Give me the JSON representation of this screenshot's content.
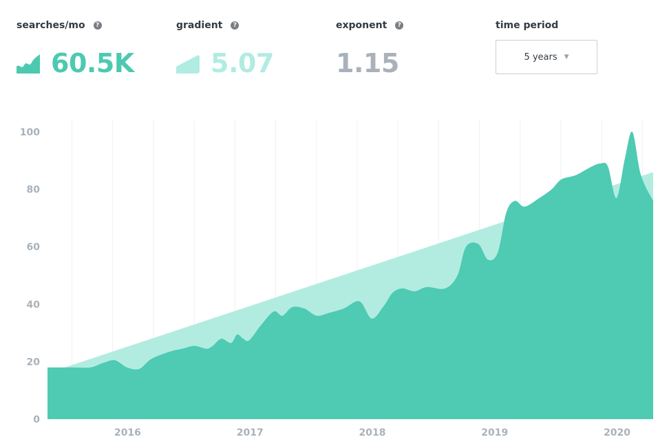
{
  "metrics": {
    "searches": {
      "label": "searches/mo",
      "value": "60.5K",
      "color": "#4dc9b0",
      "icon": "area-chart-icon"
    },
    "gradient": {
      "label": "gradient",
      "value": "5.07",
      "color": "#b0ece2",
      "icon": "trend-wedge-icon"
    },
    "exponent": {
      "label": "exponent",
      "value": "1.15",
      "color": "#a9b2ba"
    }
  },
  "time_period": {
    "label": "time period",
    "selected": "5 years"
  },
  "help_glyph": "?",
  "caret_glyph": "▼",
  "colors": {
    "area": "#4fcab3",
    "trend": "#b2ece1",
    "grid": "#eef0f2",
    "tick": "#a9b2ba"
  },
  "chart_data": {
    "type": "area",
    "xlabel": "",
    "ylabel": "",
    "ylim": [
      0,
      100
    ],
    "xlim": [
      2015.3,
      2020.25
    ],
    "y_ticks": [
      0,
      20,
      40,
      60,
      80,
      100
    ],
    "x_ticks": [
      "2016",
      "2017",
      "2018",
      "2019",
      "2020"
    ],
    "x_tick_values": [
      2016,
      2017,
      2018,
      2019,
      2020
    ],
    "grid": true,
    "legend": "none",
    "trend": {
      "x": [
        2015.3,
        2020.25
      ],
      "y": [
        16,
        86
      ]
    },
    "series": [
      {
        "x": [
          2015.3,
          2015.5,
          2015.65,
          2015.75,
          2015.85,
          2015.95,
          2016.05,
          2016.15,
          2016.3,
          2016.4,
          2016.5,
          2016.6,
          2016.65,
          2016.72,
          2016.8,
          2016.85,
          2016.9,
          2016.95,
          2017.05,
          2017.15,
          2017.22,
          2017.3,
          2017.4,
          2017.5,
          2017.6,
          2017.72,
          2017.85,
          2017.95,
          2018.05,
          2018.12,
          2018.2,
          2018.3,
          2018.4,
          2018.55,
          2018.65,
          2018.72,
          2018.82,
          2018.9,
          2018.98,
          2019.05,
          2019.12,
          2019.2,
          2019.32,
          2019.42,
          2019.5,
          2019.62,
          2019.75,
          2019.82,
          2019.88,
          2019.95,
          2020.02,
          2020.08,
          2020.15,
          2020.25
        ],
        "y": [
          18,
          18,
          18,
          19.5,
          20.5,
          18,
          17.5,
          21,
          23.5,
          24.5,
          25.5,
          24.5,
          25.5,
          28,
          26.5,
          29.5,
          28,
          27.5,
          33,
          37.5,
          36,
          39,
          38.5,
          36,
          37,
          38.5,
          41,
          35,
          39.5,
          44,
          45.5,
          44.5,
          46,
          45.5,
          50,
          60,
          61,
          55.5,
          58,
          72,
          76,
          74,
          77,
          80,
          83.5,
          85,
          88,
          89,
          88,
          77,
          91,
          100,
          85,
          76
        ]
      }
    ]
  }
}
